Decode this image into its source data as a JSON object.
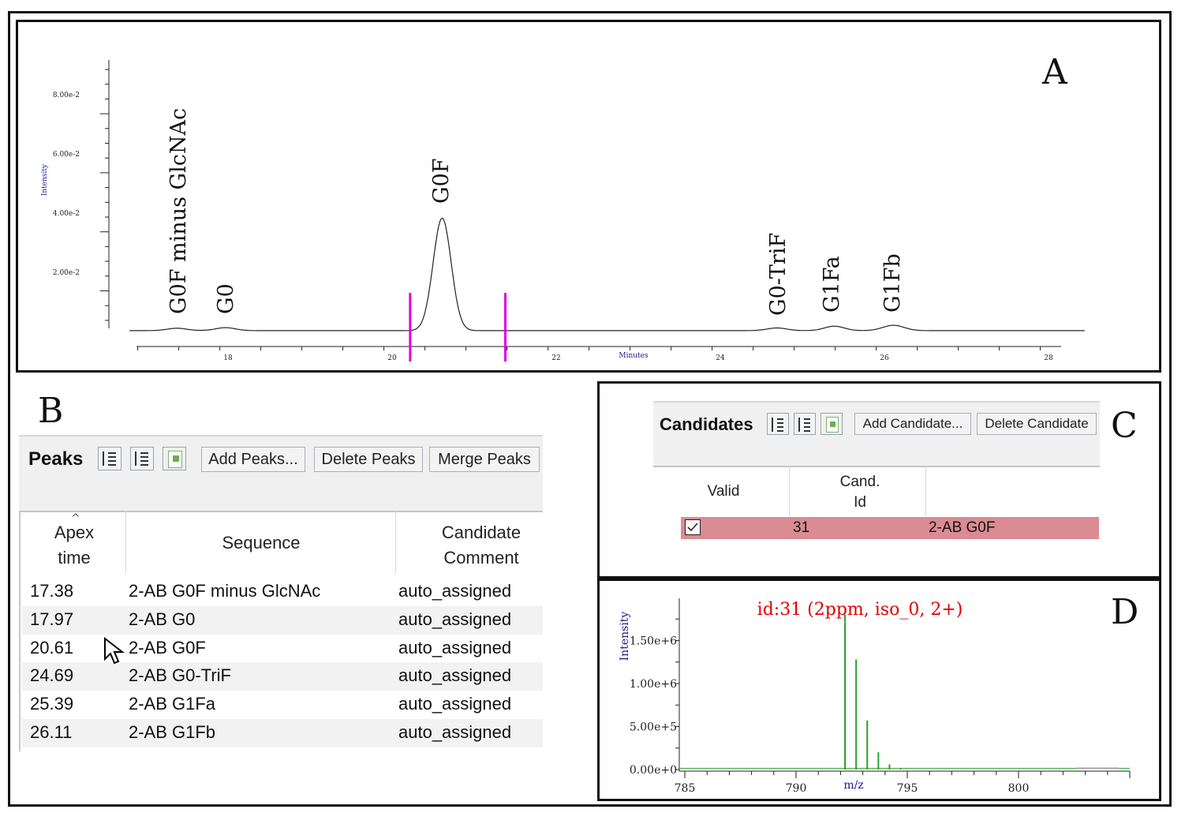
{
  "panel_labels": {
    "a": "A",
    "b": "B",
    "c": "C",
    "d": "D"
  },
  "chromatogram": {
    "y_axis_label": "Intensity",
    "x_axis_label": "Minutes",
    "y_ticks": [
      "8.00e-2",
      "6.00e-2",
      "4.00e-2",
      "2.00e-2"
    ],
    "x_ticks": [
      "18",
      "20",
      "22",
      "24",
      "26",
      "28"
    ],
    "peak_labels": [
      "G0F minus GlcNAc",
      "G0",
      "G0F",
      "G0-TriF",
      "G1Fa",
      "G1Fb"
    ],
    "marker_color": "#e000e0"
  },
  "chart_data": [
    {
      "type": "line",
      "title": "",
      "xlabel": "Minutes",
      "ylabel": "Intensity",
      "xlim": [
        16.8,
        28.5
      ],
      "ylim": [
        0,
        0.09
      ],
      "grid": false,
      "series": [
        {
          "x": [
            17.38,
            17.97,
            20.61,
            24.69,
            25.39,
            26.11
          ],
          "y": [
            0.0008,
            0.001,
            0.038,
            0.0009,
            0.0015,
            0.0018
          ]
        }
      ],
      "annotations": [
        "G0F minus GlcNAc",
        "G0",
        "G0F",
        "G0-TriF",
        "G1Fa",
        "G1Fb"
      ],
      "integration_markers_x": [
        20.22,
        21.38
      ]
    },
    {
      "type": "bar",
      "title": "id:31 (2ppm, iso_0, 2+)",
      "xlabel": "m/z",
      "ylabel": "Intensity",
      "xlim": [
        785,
        805
      ],
      "ylim": [
        0,
        1900000
      ],
      "grid": false,
      "x": [
        792.2,
        792.7,
        793.2,
        793.7,
        794.2,
        794.7
      ],
      "values": [
        1800000,
        1280000,
        570000,
        200000,
        60000,
        15000
      ]
    }
  ],
  "peaks_panel": {
    "title": "Peaks",
    "buttons": [
      "Add Peaks...",
      "Delete Peaks",
      "Merge Peaks"
    ],
    "columns": [
      "Apex\ntime",
      "Sequence",
      "Candidate\nComment"
    ],
    "rows": [
      {
        "apex": "17.38",
        "sequence": "2-AB G0F minus GlcNAc",
        "comment": "auto_assigned"
      },
      {
        "apex": "17.97",
        "sequence": "2-AB G0",
        "comment": "auto_assigned"
      },
      {
        "apex": "20.61",
        "sequence": "2-AB G0F",
        "comment": "auto_assigned"
      },
      {
        "apex": "24.69",
        "sequence": "2-AB G0-TriF",
        "comment": "auto_assigned"
      },
      {
        "apex": "25.39",
        "sequence": "2-AB G1Fa",
        "comment": "auto_assigned"
      },
      {
        "apex": "26.11",
        "sequence": "2-AB G1Fb",
        "comment": "auto_assigned"
      }
    ]
  },
  "candidates_panel": {
    "title": "Candidates",
    "buttons": [
      "Add Candidate...",
      "Delete Candidate"
    ],
    "columns": [
      "Valid",
      "Cand.\nId"
    ],
    "row": {
      "valid": true,
      "id": "31",
      "name": "2-AB G0F"
    },
    "row_color": "#db8b93"
  },
  "spectrum": {
    "title": "id:31 (2ppm, iso_0, 2+)",
    "title_color": "#e00000",
    "y_axis_label": "Intensity",
    "x_axis_label": "m/z",
    "y_ticks": [
      "1.50e+6",
      "1.00e+6",
      "5.00e+5",
      "0.00e+0"
    ],
    "x_ticks": [
      "785",
      "790",
      "795",
      "800"
    ],
    "line_color": "#2ca02c"
  }
}
